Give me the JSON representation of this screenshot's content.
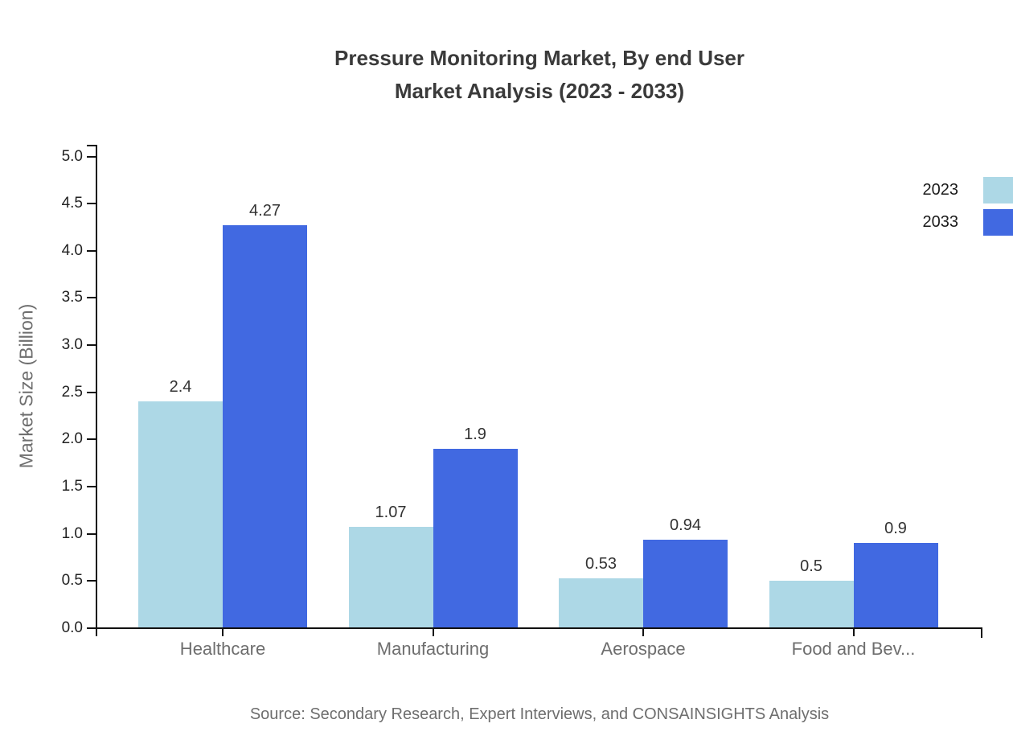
{
  "source_note": "Source: Secondary Research, Expert Interviews, and CONSAINSIGHTS Analysis",
  "chart_data": {
    "type": "bar",
    "title_lines": [
      "Pressure Monitoring Market, By end User",
      "Market Analysis (2023 - 2033)"
    ],
    "categories": [
      "Healthcare",
      "Manufacturing",
      "Aerospace",
      "Food and Bev..."
    ],
    "series": [
      {
        "name": "2023",
        "color": "#ADD8E6",
        "values": [
          2.4,
          1.07,
          0.53,
          0.5
        ]
      },
      {
        "name": "2033",
        "color": "#4169E1",
        "values": [
          4.27,
          1.9,
          0.94,
          0.9
        ]
      }
    ],
    "ylabel": "Market Size (Billion)",
    "xlabel": "",
    "ylim": [
      0,
      5
    ],
    "ytick_step": 0.5,
    "ytick_labels": [
      "0.0",
      "0.5",
      "1.0",
      "1.5",
      "2.0",
      "2.5",
      "3.0",
      "3.5",
      "4.0",
      "4.5",
      "5.0"
    ],
    "grid": false,
    "legend_position": "top-right",
    "axis_color": "#111111",
    "value_label_color": "#333333"
  }
}
